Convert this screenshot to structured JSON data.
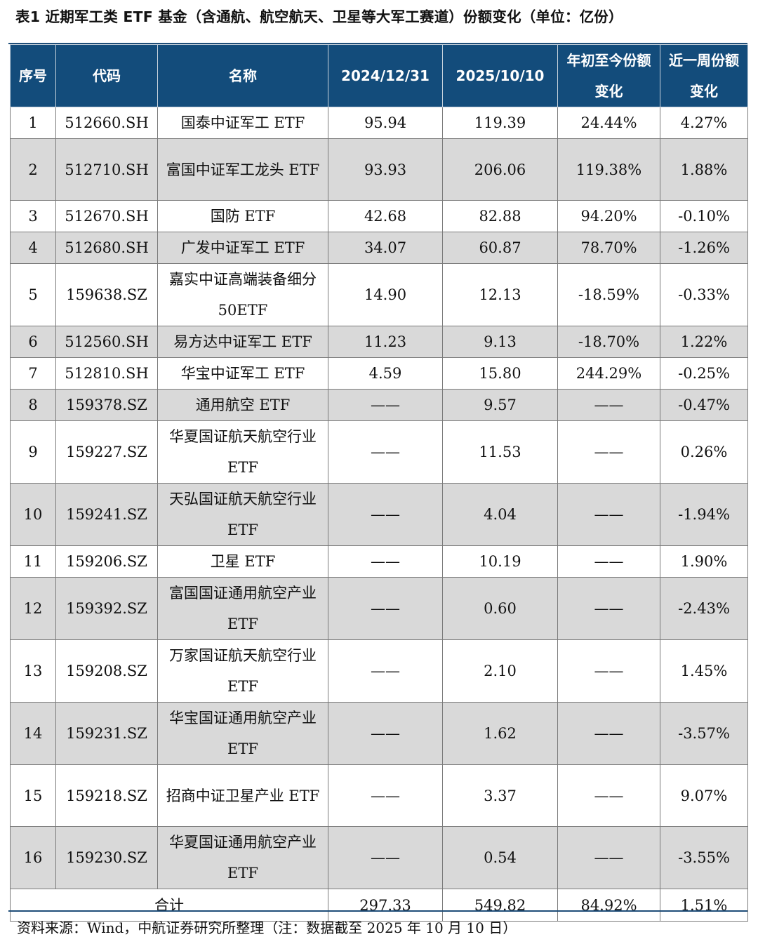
{
  "title": "表1  近期军工类 ETF 基金（含通航、航空航天、卫星等大军工赛道）份额变化（单位：亿份）",
  "headers": {
    "seq": "序号",
    "code": "代码",
    "name": "名称",
    "d2024": "2024/12/31",
    "d2025": "2025/10/10",
    "ytd": "年初至今份额变化",
    "week": "近一周份额变化"
  },
  "rows": [
    {
      "seq": "1",
      "code": "512660.SH",
      "name": "国泰中证军工 ETF",
      "v2024": "95.94",
      "v2025": "119.39",
      "ytd": "24.44%",
      "week": "4.27%"
    },
    {
      "seq": "2",
      "code": "512710.SH",
      "name": "富国中证军工龙头 ETF",
      "v2024": "93.93",
      "v2025": "206.06",
      "ytd": "119.38%",
      "week": "1.88%"
    },
    {
      "seq": "3",
      "code": "512670.SH",
      "name": "国防 ETF",
      "v2024": "42.68",
      "v2025": "82.88",
      "ytd": "94.20%",
      "week": "-0.10%"
    },
    {
      "seq": "4",
      "code": "512680.SH",
      "name": "广发中证军工 ETF",
      "v2024": "34.07",
      "v2025": "60.87",
      "ytd": "78.70%",
      "week": "-1.26%"
    },
    {
      "seq": "5",
      "code": "159638.SZ",
      "name": "嘉实中证高端装备细分 50ETF",
      "v2024": "14.90",
      "v2025": "12.13",
      "ytd": "-18.59%",
      "week": "-0.33%"
    },
    {
      "seq": "6",
      "code": "512560.SH",
      "name": "易方达中证军工 ETF",
      "v2024": "11.23",
      "v2025": "9.13",
      "ytd": "-18.70%",
      "week": "1.22%"
    },
    {
      "seq": "7",
      "code": "512810.SH",
      "name": "华宝中证军工 ETF",
      "v2024": "4.59",
      "v2025": "15.80",
      "ytd": "244.29%",
      "week": "-0.25%"
    },
    {
      "seq": "8",
      "code": "159378.SZ",
      "name": "通用航空 ETF",
      "v2024": "——",
      "v2025": "9.57",
      "ytd": "——",
      "week": "-0.47%"
    },
    {
      "seq": "9",
      "code": "159227.SZ",
      "name": "华夏国证航天航空行业 ETF",
      "v2024": "——",
      "v2025": "11.53",
      "ytd": "——",
      "week": "0.26%"
    },
    {
      "seq": "10",
      "code": "159241.SZ",
      "name": "天弘国证航天航空行业 ETF",
      "v2024": "——",
      "v2025": "4.04",
      "ytd": "——",
      "week": "-1.94%"
    },
    {
      "seq": "11",
      "code": "159206.SZ",
      "name": "卫星 ETF",
      "v2024": "——",
      "v2025": "10.19",
      "ytd": "——",
      "week": "1.90%"
    },
    {
      "seq": "12",
      "code": "159392.SZ",
      "name": "富国国证通用航空产业 ETF",
      "v2024": "——",
      "v2025": "0.60",
      "ytd": "——",
      "week": "-2.43%"
    },
    {
      "seq": "13",
      "code": "159208.SZ",
      "name": "万家国证航天航空行业 ETF",
      "v2024": "——",
      "v2025": "2.10",
      "ytd": "——",
      "week": "1.45%"
    },
    {
      "seq": "14",
      "code": "159231.SZ",
      "name": "华宝国证通用航空产业 ETF",
      "v2024": "——",
      "v2025": "1.62",
      "ytd": "——",
      "week": "-3.57%"
    },
    {
      "seq": "15",
      "code": "159218.SZ",
      "name": "招商中证卫星产业 ETF",
      "v2024": "——",
      "v2025": "3.37",
      "ytd": "——",
      "week": "9.07%"
    },
    {
      "seq": "16",
      "code": "159230.SZ",
      "name": "华夏国证通用航空产业 ETF",
      "v2024": "——",
      "v2025": "0.54",
      "ytd": "——",
      "week": "-3.55%"
    }
  ],
  "total": {
    "label": "合计",
    "v2024": "297.33",
    "v2025": "549.82",
    "ytd": "84.92%",
    "week": "1.51%"
  },
  "source": "资料来源：Wind，中航证券研究所整理（注：数据截至 2025 年 10 月 10 日）"
}
